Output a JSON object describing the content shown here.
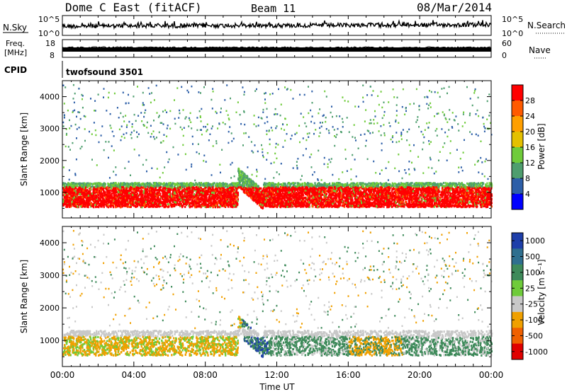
{
  "header": {
    "title": "Dome C East (fitACF)",
    "beam": "Beam 11",
    "date": "08/Mar/2014"
  },
  "nsky_panel": {
    "left_label": "N.Sky",
    "right_label": "N.Search",
    "left_ticks": [
      "10^5",
      "10^0"
    ],
    "right_ticks": [
      "10^5",
      "10^0"
    ]
  },
  "freq_panel": {
    "left_label_line1": "Freq.",
    "left_label_line2": "[MHz]",
    "left_ticks": [
      "18",
      "8"
    ],
    "right_label": "Nave",
    "right_ticks": [
      "60",
      "0"
    ]
  },
  "cpid_panel": {
    "label": "CPID",
    "value": "twofsound 3501"
  },
  "chart_data": [
    {
      "type": "heatmap",
      "name": "power",
      "ylabel": "Slant Range [km]",
      "xlabel": "",
      "ylim": [
        200,
        4500
      ],
      "yticks": [
        "1000",
        "2000",
        "3000",
        "4000"
      ],
      "ytick_values": [
        1000,
        2000,
        3000,
        4000
      ],
      "colorbar_label": "Power [dB]",
      "colorbar_ticks": [
        "28",
        "24",
        "20",
        "16",
        "12",
        "8",
        "4"
      ],
      "colorbar_colors": [
        "#ff0000",
        "#ff5a00",
        "#ff9f00",
        "#e4c000",
        "#6fcb3a",
        "#4e9e6e",
        "#2d5fa8",
        "#0000ff"
      ],
      "x_range_hours": [
        0,
        24
      ]
    },
    {
      "type": "heatmap",
      "name": "velocity",
      "ylabel": "Slant Range [km]",
      "xlabel": "Time UT",
      "ylim": [
        200,
        4500
      ],
      "yticks": [
        "1000",
        "2000",
        "3000",
        "4000"
      ],
      "ytick_values": [
        1000,
        2000,
        3000,
        4000
      ],
      "xticks": [
        "00:00",
        "04:00",
        "08:00",
        "12:00",
        "16:00",
        "20:00",
        "00:00"
      ],
      "xtick_hours": [
        0,
        4,
        8,
        12,
        16,
        20,
        24
      ],
      "colorbar_label": "Velocity [m s⁻¹]",
      "colorbar_ticks": [
        "1000",
        "500",
        "100",
        "25",
        "-25",
        "-100",
        "-500",
        "-1000"
      ],
      "colorbar_colors": [
        "#1e3faa",
        "#2f6f8f",
        "#3e8a5a",
        "#6fcb3a",
        "#c8c8c8",
        "#f0a000",
        "#f06000",
        "#e00000"
      ]
    }
  ]
}
